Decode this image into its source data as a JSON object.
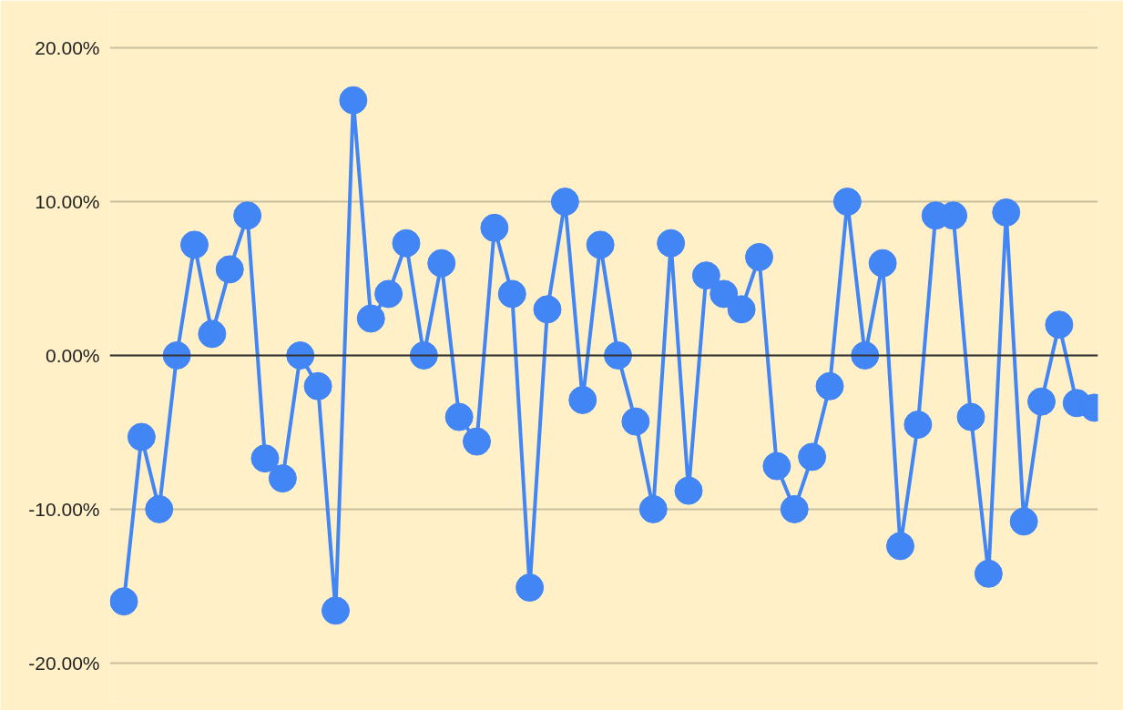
{
  "chart_data": {
    "type": "line",
    "categories": [
      null,
      null,
      null,
      null,
      null,
      null,
      null,
      null,
      null,
      null,
      null,
      null,
      null,
      null,
      null,
      null,
      null,
      null,
      null,
      null,
      null,
      null,
      null,
      null,
      null,
      null,
      null,
      null,
      null,
      null,
      null,
      null,
      null,
      null,
      null,
      null,
      null,
      null,
      null,
      null,
      null,
      null,
      null,
      null,
      null,
      null,
      null,
      null,
      null,
      null,
      null,
      null,
      null,
      null,
      null,
      null
    ],
    "series": [
      {
        "color": "#4285f4",
        "values": [
          -16.0,
          -5.3,
          -10.0,
          0,
          7.2,
          1.4,
          5.6,
          9.1,
          -6.7,
          -8.0,
          0,
          -2.0,
          -16.6,
          16.6,
          2.4,
          4.0,
          7.3,
          0,
          6.0,
          -4.0,
          -5.6,
          8.3,
          4.0,
          -15.1,
          3.0,
          10.0,
          -2.9,
          7.2,
          0,
          -4.3,
          -10.0,
          7.3,
          -8.8,
          5.2,
          4.0,
          3.0,
          6.4,
          -7.2,
          -10.0,
          -6.6,
          -2.0,
          10.0,
          0,
          6.0,
          -12.4,
          -4.5,
          9.1,
          9.1,
          -4.0,
          -14.2,
          9.3,
          -10.8,
          -3.0,
          2.0,
          -3.1,
          -3.4
        ]
      }
    ],
    "ylim": [
      -22.5,
      22.5
    ],
    "yticks": [
      {
        "value": -20,
        "label": "-20.00%"
      },
      {
        "value": -10,
        "label": "-10.00%"
      },
      {
        "value": 0,
        "label": "0.00%"
      },
      {
        "value": 10,
        "label": "10.00%"
      },
      {
        "value": 20,
        "label": "20.00%"
      }
    ],
    "ref_lines": [
      {
        "axis": "y",
        "value": 0,
        "color": "#333333"
      }
    ],
    "grid": "y",
    "marker": "circle",
    "line_style": "solid",
    "tick_labels": "y"
  }
}
